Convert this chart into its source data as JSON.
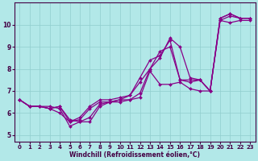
{
  "xlabel": "Windchill (Refroidissement éolien,°C)",
  "bg_color": "#b2e8e8",
  "line_color": "#880088",
  "grid_color": "#90cece",
  "axis_color": "#440044",
  "xlim": [
    -0.5,
    23.5
  ],
  "ylim": [
    4.7,
    11.0
  ],
  "yticks": [
    5,
    6,
    7,
    8,
    9,
    10
  ],
  "xticks": [
    0,
    1,
    2,
    3,
    4,
    5,
    6,
    7,
    8,
    9,
    10,
    11,
    12,
    13,
    14,
    15,
    16,
    17,
    18,
    19,
    20,
    21,
    22,
    23
  ],
  "series": [
    [
      6.6,
      6.3,
      6.3,
      6.3,
      6.2,
      5.4,
      5.6,
      5.6,
      6.3,
      6.5,
      6.5,
      6.6,
      6.7,
      7.9,
      7.3,
      7.3,
      7.4,
      7.1,
      7.0,
      7.0,
      10.2,
      10.1,
      10.2,
      10.2
    ],
    [
      6.6,
      6.3,
      6.3,
      6.2,
      6.0,
      5.6,
      5.8,
      6.3,
      6.6,
      6.6,
      6.7,
      6.8,
      7.4,
      8.0,
      8.5,
      9.4,
      9.0,
      7.6,
      7.5,
      7.0,
      10.3,
      10.5,
      10.3,
      10.3
    ],
    [
      6.6,
      6.3,
      6.3,
      6.2,
      6.3,
      5.6,
      5.7,
      6.2,
      6.5,
      6.5,
      6.6,
      6.8,
      7.6,
      8.4,
      8.6,
      9.3,
      7.5,
      7.4,
      7.5,
      7.0,
      10.2,
      10.4,
      10.3,
      10.3
    ],
    [
      6.6,
      6.3,
      6.3,
      6.2,
      6.3,
      5.7,
      5.6,
      5.8,
      6.4,
      6.5,
      6.6,
      6.6,
      6.9,
      8.0,
      8.8,
      9.0,
      7.5,
      7.5,
      7.5,
      7.0,
      10.3,
      10.5,
      10.3,
      10.3
    ]
  ],
  "tick_fontsize": 5.0,
  "xlabel_fontsize": 5.5,
  "linewidth": 0.9,
  "markersize": 2.0
}
